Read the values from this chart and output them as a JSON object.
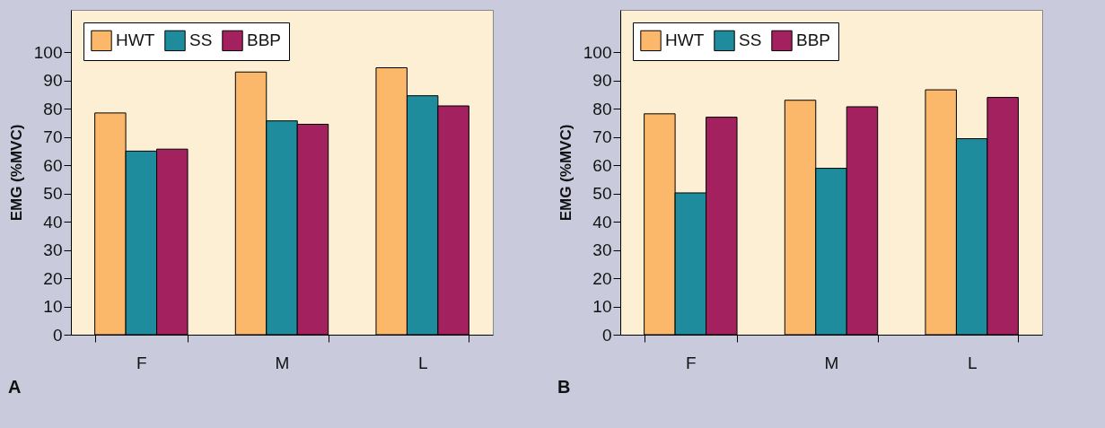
{
  "chart_data": [
    {
      "type": "bar",
      "categories": [
        "F",
        "M",
        "L"
      ],
      "ylabel": "EMG (%MVC)",
      "ylim": [
        0,
        115
      ],
      "yticks": [
        0,
        10,
        20,
        30,
        40,
        50,
        60,
        70,
        80,
        90,
        100
      ],
      "legend": "top left",
      "annotations": [
        "A"
      ],
      "series": [
        {
          "name": "HWT",
          "color": "#fbb86b",
          "values": [
            78.5,
            93,
            94.5
          ]
        },
        {
          "name": "SS",
          "color": "#1e8c9c",
          "values": [
            65,
            75.7,
            84.6
          ]
        },
        {
          "name": "BBP",
          "color": "#a3215e",
          "values": [
            65.7,
            74.5,
            81
          ]
        }
      ]
    },
    {
      "type": "bar",
      "categories": [
        "F",
        "M",
        "L"
      ],
      "ylabel": "EMG (%MVC)",
      "ylim": [
        0,
        115
      ],
      "yticks": [
        0,
        10,
        20,
        30,
        40,
        50,
        60,
        70,
        80,
        90,
        100
      ],
      "legend": "top left",
      "annotations": [
        "B"
      ],
      "series": [
        {
          "name": "HWT",
          "color": "#fbb86b",
          "values": [
            78.2,
            83,
            86.7
          ]
        },
        {
          "name": "SS",
          "color": "#1e8c9c",
          "values": [
            50.2,
            58.9,
            69.4
          ]
        },
        {
          "name": "BBP",
          "color": "#a3215e",
          "values": [
            77,
            80.7,
            84
          ]
        }
      ]
    }
  ]
}
